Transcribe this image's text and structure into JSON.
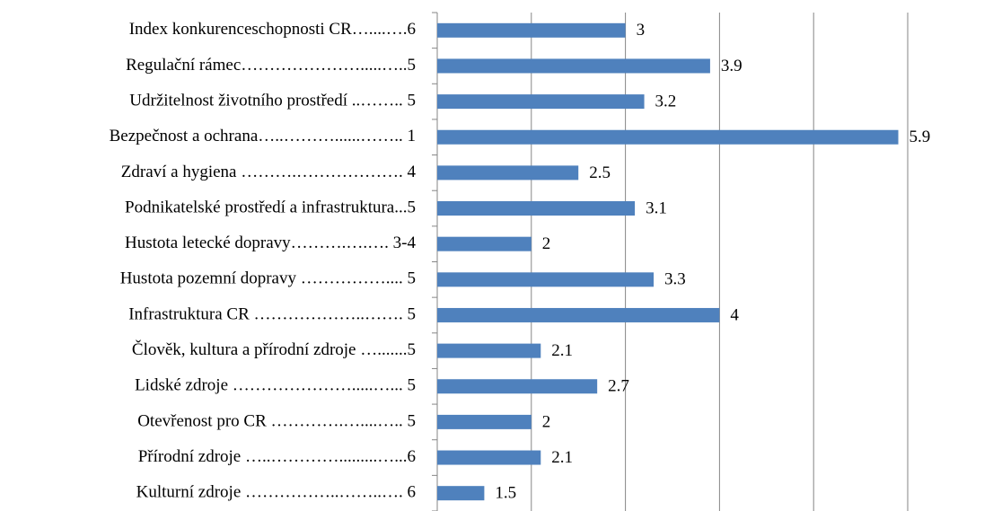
{
  "chart_data": {
    "type": "barh",
    "categories": [
      "Index konkurenceschopnosti CR…....….6",
      "Regulační rámec………………….....…..5",
      "Udržitelnost životního prostředí ..…….. 5",
      "Bezpečnost a ochrana…..………......…….. 1",
      "Zdraví a hygiena ……….………………. 4",
      "Podnikatelské prostředí a infrastruktura...5",
      "Hustota letecké dopravy……….….…. 3-4",
      "Hustota pozemní dopravy …………….... 5",
      "Infrastruktura CR ………………..……. 5",
      "Člověk, kultura a přírodní zdroje ….......5",
      "Lidské zdroje ………………….....…... 5",
      "Otevřenost pro CR ………….…....….. 5",
      "Přírodní zdroje …..………….........…...6",
      "Kulturní zdroje ……………..……..…. 6"
    ],
    "values": [
      3,
      3.9,
      3.2,
      5.9,
      2.5,
      3.1,
      2,
      3.3,
      4,
      2.1,
      2.7,
      2,
      2.1,
      1.5
    ],
    "color": "#4f81bd",
    "xlim": [
      1,
      6
    ],
    "xticks": [
      1,
      2,
      3,
      4,
      5,
      6
    ],
    "grid": true
  }
}
